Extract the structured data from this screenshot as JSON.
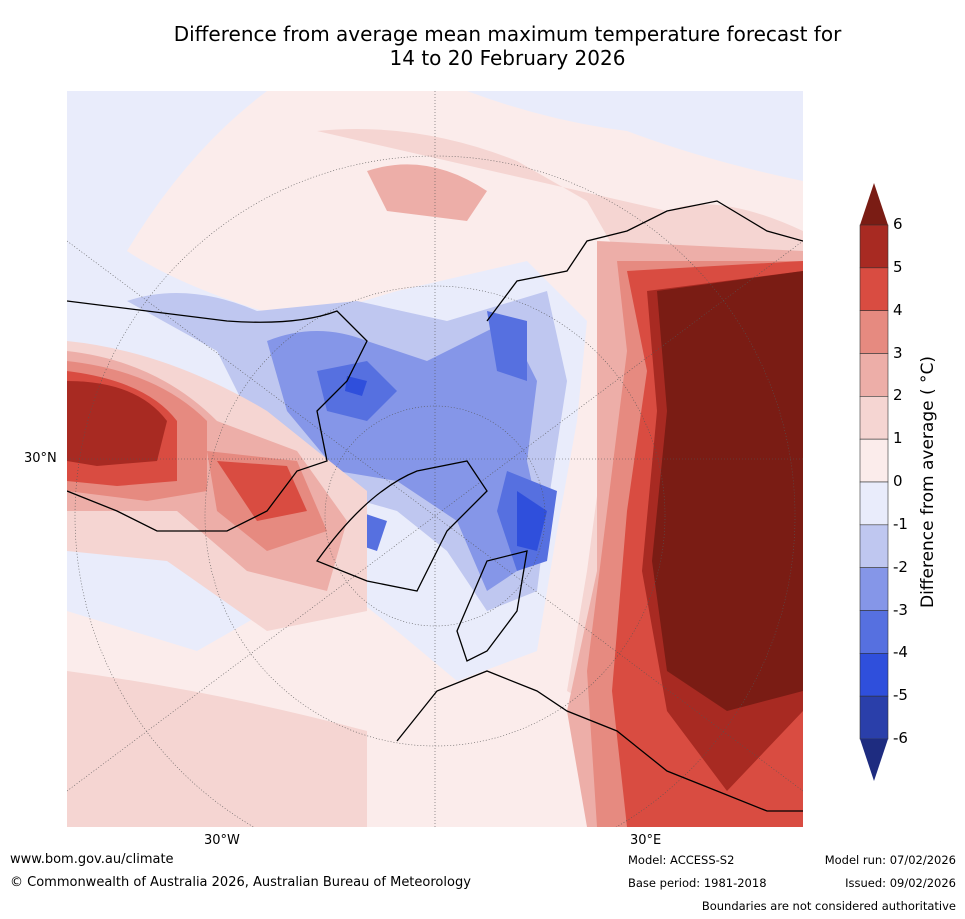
{
  "title": {
    "line1": "Difference from average mean maximum temperature forecast for",
    "line2": "14 to 20 February 2026"
  },
  "map": {
    "lat_label": "30°N",
    "lon_labels": [
      "30°W",
      "30°E"
    ]
  },
  "colorbar": {
    "label": "Difference from average ( °C)",
    "ticks": [
      "6",
      "5",
      "4",
      "3",
      "2",
      "1",
      "0",
      "-1",
      "-2",
      "-3",
      "-4",
      "-5",
      "-6"
    ],
    "colors": [
      "#a82a22",
      "#d94c41",
      "#e68a80",
      "#edaea8",
      "#f5d5d2",
      "#fbeceb",
      "#e9ecfb",
      "#bfc7f0",
      "#8596e8",
      "#5670e0",
      "#2f4fdc",
      "#2a3faa"
    ],
    "extend_high_color": "#7a1c14",
    "extend_low_color": "#1e2c80"
  },
  "footer": {
    "website": "www.bom.gov.au/climate",
    "copyright": "© Commonwealth of Australia 2026, Australian Bureau of Meteorology",
    "model": "Model: ACCESS-S2",
    "base_period": "Base period: 1981-2018",
    "model_run": "Model run: 07/02/2026",
    "issued": "Issued: 09/02/2026",
    "disclaimer": "Boundaries are not considered authoritative"
  }
}
